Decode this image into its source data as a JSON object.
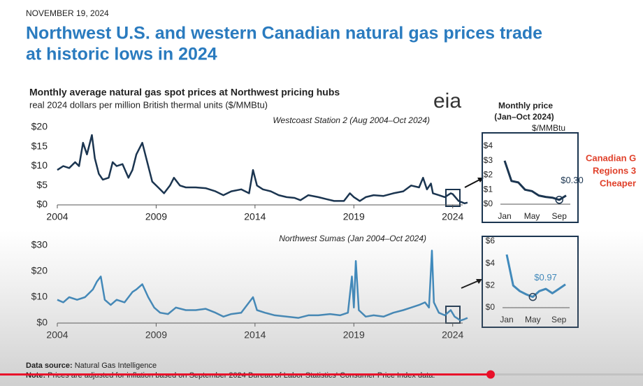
{
  "header": {
    "date": "NOVEMBER 19, 2024",
    "headline": [
      "Northwest U.S. and western Canadian natural gas prices trade",
      "at historic lows in 2024"
    ]
  },
  "figure": {
    "title": "Monthly average natural gas spot prices at Northwest pricing hubs",
    "subtitle": "real 2024 dollars per million British thermal units ($/MMBtu)",
    "logo": "eia",
    "inset_header": [
      "Monthly price",
      "(Jan–Oct 2024)",
      "$/MMBtu"
    ]
  },
  "side_text": [
    "Canadian G",
    "Regions 3",
    "Cheaper"
  ],
  "footer": {
    "source_label": "Data source:",
    "source": "Natural Gas Intelligence",
    "note_label": "Note:",
    "note": "Prices are adjusted for inflation based on September 2024 Bureau of Labor Statistics' Consumer Price Index data."
  },
  "chart_data": [
    {
      "type": "line",
      "label": "Westcoast Station 2 (Aug 2004–Oct 2024)",
      "color": "#1b3550",
      "x": [
        2004.0,
        2004.3,
        2004.6,
        2004.9,
        2005.1,
        2005.3,
        2005.5,
        2005.75,
        2005.9,
        2006.1,
        2006.3,
        2006.6,
        2006.8,
        2007.0,
        2007.3,
        2007.6,
        2007.8,
        2008.0,
        2008.3,
        2008.5,
        2008.8,
        2009.1,
        2009.4,
        2009.7,
        2009.9,
        2010.2,
        2010.5,
        2011.0,
        2011.5,
        2012.0,
        2012.4,
        2012.8,
        2013.3,
        2013.7,
        2013.9,
        2014.1,
        2014.4,
        2014.8,
        2015.2,
        2015.6,
        2016.0,
        2016.3,
        2016.7,
        2017.2,
        2017.6,
        2018.0,
        2018.5,
        2018.8,
        2019.0,
        2019.3,
        2019.6,
        2020.0,
        2020.5,
        2021.0,
        2021.5,
        2021.9,
        2022.3,
        2022.5,
        2022.7,
        2022.9,
        2023.0,
        2023.3,
        2023.6,
        2023.9,
        2024.0,
        2024.3,
        2024.6,
        2024.75
      ],
      "values": [
        9,
        10,
        9.5,
        11,
        10,
        16,
        13,
        18,
        12,
        8,
        6.5,
        7,
        11,
        10,
        10.5,
        7,
        9,
        13,
        16,
        12,
        6,
        4.5,
        3,
        5,
        7,
        5,
        4.5,
        4.5,
        4.3,
        3.5,
        2.5,
        3.5,
        4,
        3,
        9,
        5,
        4,
        3.5,
        2.5,
        2,
        1.8,
        1.2,
        2.5,
        2,
        1.5,
        1,
        1,
        3,
        2,
        1,
        2,
        2.5,
        2.3,
        3,
        3.5,
        5,
        4.5,
        7,
        4,
        5.5,
        3,
        2.5,
        2,
        3,
        2.8,
        1,
        0.4,
        0.6
      ],
      "xlim": [
        2004,
        2025
      ],
      "xticks": [
        2004,
        2009,
        2014,
        2019,
        2024
      ],
      "ylim": [
        0,
        20
      ],
      "yticks": [
        {
          "value": 0,
          "label": "$0"
        },
        {
          "value": 5,
          "label": "$5"
        },
        {
          "value": 10,
          "label": "$10"
        },
        {
          "value": 15,
          "label": "$15"
        },
        {
          "value": 20,
          "label": "$20"
        }
      ]
    },
    {
      "type": "line",
      "label": "Northwest Sumas (Jan 2004–Oct 2024)",
      "color": "#3a8ac1",
      "x": [
        2004.0,
        2004.3,
        2004.6,
        2005.0,
        2005.4,
        2005.8,
        2006.0,
        2006.2,
        2006.4,
        2006.7,
        2007.0,
        2007.4,
        2007.8,
        2008.0,
        2008.3,
        2008.6,
        2008.9,
        2009.2,
        2009.6,
        2010.0,
        2010.5,
        2011.0,
        2011.5,
        2012.0,
        2012.4,
        2012.8,
        2013.3,
        2013.9,
        2014.1,
        2014.5,
        2015.0,
        2015.6,
        2016.2,
        2016.7,
        2017.2,
        2017.8,
        2018.3,
        2018.7,
        2018.9,
        2019.0,
        2019.1,
        2019.25,
        2019.6,
        2020.0,
        2020.5,
        2021.0,
        2021.5,
        2021.9,
        2022.3,
        2022.6,
        2022.8,
        2022.95,
        2023.05,
        2023.3,
        2023.6,
        2023.9,
        2024.1,
        2024.4,
        2024.6,
        2024.75
      ],
      "values": [
        9,
        8,
        10,
        9,
        10,
        13,
        16,
        18,
        9,
        7,
        9,
        8,
        12,
        13,
        15,
        10,
        6,
        4,
        3.5,
        6,
        5,
        5,
        5.5,
        4,
        2.5,
        3.5,
        4,
        10,
        5,
        4,
        3,
        2.5,
        2,
        3,
        3,
        3.5,
        3,
        4,
        18,
        6,
        24,
        5,
        2.5,
        3,
        2.5,
        4,
        5,
        6,
        7,
        8,
        6,
        28,
        8,
        4,
        3,
        5,
        2.5,
        1,
        1.5,
        2
      ],
      "xlim": [
        2004,
        2025
      ],
      "xticks": [
        2004,
        2009,
        2014,
        2019,
        2024
      ],
      "ylim": [
        0,
        30
      ],
      "yticks": [
        {
          "value": 0,
          "label": "$0"
        },
        {
          "value": 10,
          "label": "$10"
        },
        {
          "value": 20,
          "label": "$20"
        },
        {
          "value": 30,
          "label": "$30"
        }
      ]
    },
    {
      "type": "inset",
      "color": "#1b3550",
      "categories": [
        "Jan",
        null,
        null,
        null,
        "May",
        null,
        null,
        null,
        "Sep",
        null
      ],
      "values": [
        3.0,
        1.6,
        1.5,
        1.0,
        0.9,
        0.6,
        0.5,
        0.45,
        0.3,
        0.6
      ],
      "value_labels": [
        null,
        null,
        null,
        null,
        null,
        null,
        null,
        null,
        "$0.30",
        null
      ],
      "ylim": [
        0,
        4
      ],
      "yticks": [
        {
          "value": 0,
          "label": "$0"
        },
        {
          "value": 1,
          "label": "$1"
        },
        {
          "value": 2,
          "label": "$2"
        },
        {
          "value": 3,
          "label": "$3"
        },
        {
          "value": 4,
          "label": "$4"
        }
      ]
    },
    {
      "type": "inset",
      "color": "#3a8ac1",
      "categories": [
        "Jan",
        null,
        null,
        null,
        "May",
        null,
        null,
        null,
        "Sep",
        null
      ],
      "values": [
        4.8,
        2.0,
        1.5,
        1.2,
        0.97,
        1.5,
        1.7,
        1.3,
        1.7,
        2.1
      ],
      "value_labels": [
        null,
        null,
        null,
        null,
        "$0.97",
        null,
        null,
        null,
        null,
        null
      ],
      "ylim": [
        0,
        6
      ],
      "yticks": [
        {
          "value": 0,
          "label": "$0"
        },
        {
          "value": 2,
          "label": "$2"
        },
        {
          "value": 4,
          "label": "$4"
        },
        {
          "value": 6,
          "label": "$6"
        }
      ]
    }
  ]
}
